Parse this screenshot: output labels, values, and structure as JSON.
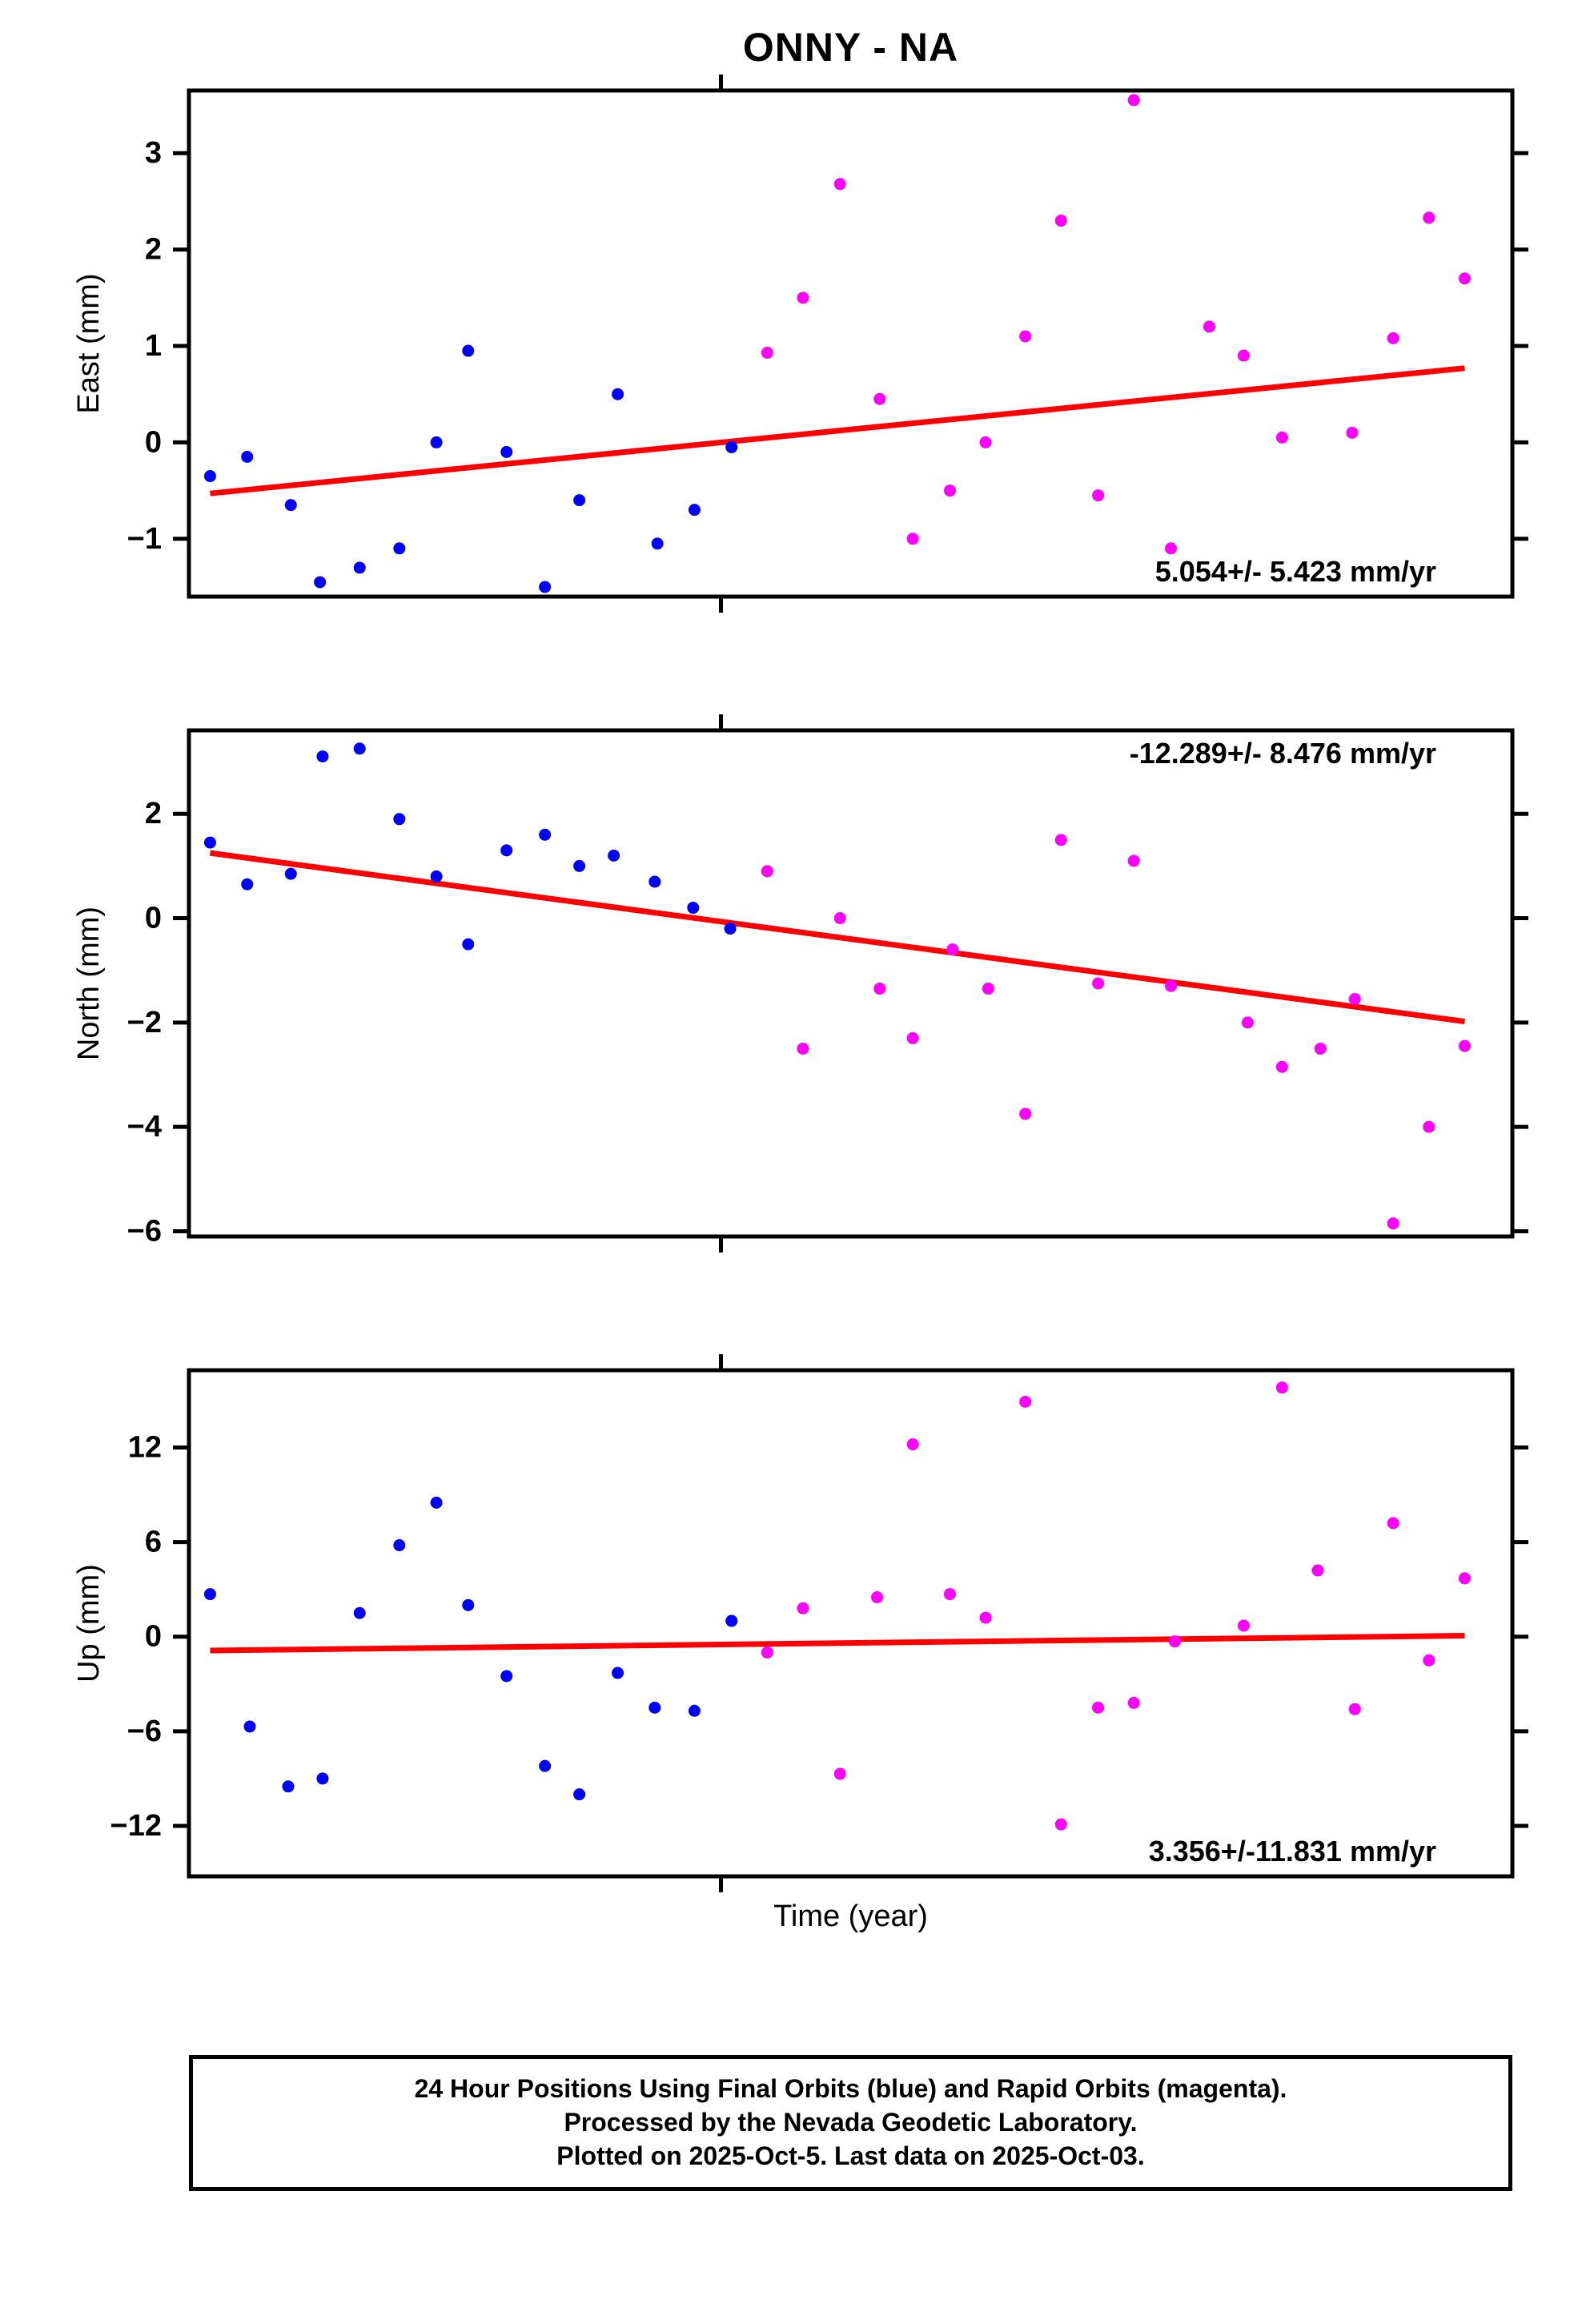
{
  "title": "ONNY - NA",
  "xlabel": "Time (year)",
  "footer": {
    "line1": "24 Hour Positions Using Final Orbits (blue) and Rapid Orbits (magenta).",
    "line2": "Processed by the Nevada Geodetic Laboratory.",
    "line3": "Plotted on 2025-Oct-5. Last data on 2025-Oct-03."
  },
  "colors": {
    "final_orbits": "#0000ff",
    "rapid_orbits": "#ff00ff",
    "trend": "#ff0000",
    "frame": "#000000"
  },
  "chart_data": [
    {
      "type": "scatter",
      "ylabel": "East (mm)",
      "ylim": [
        -1.6,
        3.65
      ],
      "yticks": [
        -1,
        0,
        1,
        2,
        3
      ],
      "xlim": [
        0,
        1
      ],
      "xticks": [
        0.402
      ],
      "grid": false,
      "annotation": "5.054+/- 5.423 mm/yr",
      "annotation_pos": "bottom-right",
      "trend": [
        [
          0.016,
          -0.53
        ],
        [
          0.964,
          0.77
        ]
      ],
      "series": [
        {
          "name": "Final Orbits",
          "color_key": "final_orbits",
          "points": [
            [
              0.016,
              -0.35
            ],
            [
              0.044,
              -0.15
            ],
            [
              0.077,
              -0.65
            ],
            [
              0.099,
              -1.45
            ],
            [
              0.129,
              -1.3
            ],
            [
              0.159,
              -1.1
            ],
            [
              0.187,
              0.0
            ],
            [
              0.211,
              0.95
            ],
            [
              0.24,
              -0.1
            ],
            [
              0.269,
              -1.5
            ],
            [
              0.295,
              -0.6
            ],
            [
              0.324,
              0.5
            ],
            [
              0.354,
              -1.05
            ],
            [
              0.382,
              -0.7
            ],
            [
              0.41,
              -0.05
            ]
          ]
        },
        {
          "name": "Rapid Orbits",
          "color_key": "rapid_orbits",
          "points": [
            [
              0.437,
              0.93
            ],
            [
              0.464,
              1.5
            ],
            [
              0.492,
              2.68
            ],
            [
              0.522,
              0.45
            ],
            [
              0.547,
              -1.0
            ],
            [
              0.575,
              -0.5
            ],
            [
              0.602,
              0.0
            ],
            [
              0.632,
              1.1
            ],
            [
              0.659,
              2.3
            ],
            [
              0.687,
              -0.55
            ],
            [
              0.714,
              3.55
            ],
            [
              0.742,
              -1.1
            ],
            [
              0.771,
              1.2
            ],
            [
              0.797,
              0.9
            ],
            [
              0.826,
              0.05
            ],
            [
              0.879,
              0.1
            ],
            [
              0.91,
              1.08
            ],
            [
              0.937,
              2.33
            ],
            [
              0.964,
              1.7
            ]
          ]
        }
      ]
    },
    {
      "type": "scatter",
      "ylabel": "North (mm)",
      "ylim": [
        -6.1,
        3.6
      ],
      "yticks": [
        -6,
        -4,
        -2,
        0,
        2
      ],
      "xlim": [
        0,
        1
      ],
      "xticks": [
        0.402
      ],
      "grid": false,
      "annotation": "-12.289+/- 8.476 mm/yr",
      "annotation_pos": "top-right",
      "trend": [
        [
          0.016,
          1.25
        ],
        [
          0.964,
          -1.98
        ]
      ],
      "series": [
        {
          "name": "Final Orbits",
          "color_key": "final_orbits",
          "points": [
            [
              0.016,
              1.45
            ],
            [
              0.044,
              0.65
            ],
            [
              0.077,
              0.85
            ],
            [
              0.101,
              3.1
            ],
            [
              0.129,
              3.25
            ],
            [
              0.159,
              1.9
            ],
            [
              0.187,
              0.8
            ],
            [
              0.211,
              -0.5
            ],
            [
              0.24,
              1.3
            ],
            [
              0.269,
              1.6
            ],
            [
              0.295,
              1.0
            ],
            [
              0.321,
              1.2
            ],
            [
              0.352,
              0.7
            ],
            [
              0.381,
              0.2
            ],
            [
              0.409,
              -0.2
            ]
          ]
        },
        {
          "name": "Rapid Orbits",
          "color_key": "rapid_orbits",
          "points": [
            [
              0.437,
              0.9
            ],
            [
              0.464,
              -2.5
            ],
            [
              0.492,
              0.0
            ],
            [
              0.522,
              -1.35
            ],
            [
              0.547,
              -2.3
            ],
            [
              0.577,
              -0.6
            ],
            [
              0.604,
              -1.35
            ],
            [
              0.632,
              -3.75
            ],
            [
              0.659,
              1.5
            ],
            [
              0.687,
              -1.25
            ],
            [
              0.714,
              1.1
            ],
            [
              0.742,
              -1.3
            ],
            [
              0.8,
              -2.0
            ],
            [
              0.826,
              -2.85
            ],
            [
              0.855,
              -2.5
            ],
            [
              0.881,
              -1.55
            ],
            [
              0.91,
              -5.85
            ],
            [
              0.937,
              -4.0
            ],
            [
              0.964,
              -2.45
            ]
          ]
        }
      ]
    },
    {
      "type": "scatter",
      "ylabel": "Up (mm)",
      "ylim": [
        -15.2,
        16.9
      ],
      "yticks": [
        -12,
        -6,
        0,
        6,
        12
      ],
      "xlim": [
        0,
        1
      ],
      "xticks": [
        0.402
      ],
      "grid": false,
      "annotation": "3.356+/-11.831 mm/yr",
      "annotation_pos": "bottom-right",
      "trend": [
        [
          0.016,
          -0.88
        ],
        [
          0.964,
          0.06
        ]
      ],
      "series": [
        {
          "name": "Final Orbits",
          "color_key": "final_orbits",
          "points": [
            [
              0.016,
              2.7
            ],
            [
              0.046,
              -5.7
            ],
            [
              0.075,
              -9.5
            ],
            [
              0.101,
              -9.0
            ],
            [
              0.129,
              1.5
            ],
            [
              0.159,
              5.8
            ],
            [
              0.187,
              8.5
            ],
            [
              0.211,
              2.0
            ],
            [
              0.24,
              -2.5
            ],
            [
              0.269,
              -8.2
            ],
            [
              0.295,
              -10.0
            ],
            [
              0.324,
              -2.3
            ],
            [
              0.352,
              -4.5
            ],
            [
              0.382,
              -4.7
            ],
            [
              0.41,
              1.0
            ]
          ]
        },
        {
          "name": "Rapid Orbits",
          "color_key": "rapid_orbits",
          "points": [
            [
              0.437,
              -1.0
            ],
            [
              0.464,
              1.8
            ],
            [
              0.492,
              -8.7
            ],
            [
              0.52,
              2.5
            ],
            [
              0.547,
              12.2
            ],
            [
              0.575,
              2.7
            ],
            [
              0.602,
              1.2
            ],
            [
              0.632,
              14.9
            ],
            [
              0.659,
              -11.9
            ],
            [
              0.687,
              -4.5
            ],
            [
              0.714,
              -4.2
            ],
            [
              0.745,
              -0.3
            ],
            [
              0.797,
              0.7
            ],
            [
              0.826,
              15.8
            ],
            [
              0.853,
              4.2
            ],
            [
              0.881,
              -4.6
            ],
            [
              0.91,
              7.2
            ],
            [
              0.937,
              -1.5
            ],
            [
              0.964,
              3.7
            ]
          ]
        }
      ]
    }
  ]
}
